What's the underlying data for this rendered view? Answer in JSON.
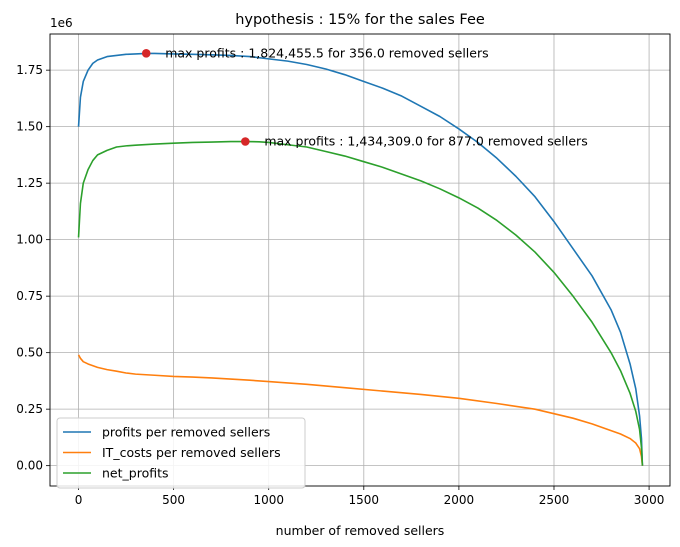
{
  "chart_data": {
    "type": "line",
    "title": "hypothesis : 15% for the sales Fee",
    "xlabel": "number of removed sellers",
    "ylabel": "",
    "y_offset_label": "1e6",
    "xlim": [
      -150,
      3110
    ],
    "ylim": [
      -0.09,
      1.91
    ],
    "xticks": [
      0,
      500,
      1000,
      1500,
      2000,
      2500,
      3000
    ],
    "xtick_labels": [
      "0",
      "500",
      "1000",
      "1500",
      "2000",
      "2500",
      "3000"
    ],
    "yticks": [
      0.0,
      0.25,
      0.5,
      0.75,
      1.0,
      1.25,
      1.5,
      1.75
    ],
    "ytick_labels": [
      "0.00",
      "0.25",
      "0.50",
      "0.75",
      "1.00",
      "1.25",
      "1.50",
      "1.75"
    ],
    "grid": true,
    "legend_position": "lower-left",
    "series": [
      {
        "name": "profits per removed sellers",
        "color": "#1f77b4",
        "x": [
          0,
          10,
          25,
          50,
          75,
          100,
          150,
          200,
          250,
          300,
          356,
          400,
          500,
          600,
          700,
          800,
          900,
          1000,
          1100,
          1200,
          1300,
          1400,
          1500,
          1600,
          1700,
          1800,
          1900,
          2000,
          2100,
          2200,
          2300,
          2400,
          2500,
          2600,
          2700,
          2800,
          2850,
          2900,
          2930,
          2950,
          2960,
          2965
        ],
        "values": [
          1.5,
          1.63,
          1.7,
          1.75,
          1.78,
          1.795,
          1.81,
          1.815,
          1.82,
          1.822,
          1.824,
          1.824,
          1.822,
          1.82,
          1.818,
          1.815,
          1.81,
          1.8,
          1.79,
          1.775,
          1.755,
          1.73,
          1.7,
          1.67,
          1.635,
          1.59,
          1.545,
          1.49,
          1.43,
          1.36,
          1.28,
          1.19,
          1.08,
          0.96,
          0.84,
          0.69,
          0.59,
          0.45,
          0.34,
          0.22,
          0.12,
          0.0
        ]
      },
      {
        "name": "IT_costs per removed sellers",
        "color": "#ff7f0e",
        "x": [
          0,
          10,
          25,
          50,
          100,
          150,
          200,
          250,
          300,
          400,
          500,
          600,
          700,
          800,
          900,
          1000,
          1200,
          1400,
          1600,
          1800,
          2000,
          2200,
          2400,
          2500,
          2600,
          2700,
          2800,
          2850,
          2900,
          2930,
          2950,
          2960,
          2965
        ],
        "values": [
          0.49,
          0.475,
          0.46,
          0.45,
          0.435,
          0.425,
          0.418,
          0.41,
          0.405,
          0.4,
          0.395,
          0.392,
          0.388,
          0.383,
          0.378,
          0.372,
          0.36,
          0.345,
          0.33,
          0.315,
          0.298,
          0.275,
          0.25,
          0.23,
          0.21,
          0.185,
          0.155,
          0.14,
          0.12,
          0.1,
          0.075,
          0.04,
          0.0
        ]
      },
      {
        "name": "net_profits",
        "color": "#2ca02c",
        "x": [
          0,
          10,
          25,
          50,
          75,
          100,
          150,
          200,
          250,
          300,
          400,
          500,
          600,
          700,
          800,
          877,
          950,
          1000,
          1100,
          1200,
          1300,
          1400,
          1500,
          1600,
          1700,
          1800,
          1900,
          2000,
          2100,
          2200,
          2300,
          2400,
          2500,
          2600,
          2700,
          2800,
          2850,
          2900,
          2930,
          2950,
          2960,
          2965
        ],
        "values": [
          1.01,
          1.16,
          1.25,
          1.31,
          1.35,
          1.375,
          1.395,
          1.41,
          1.415,
          1.418,
          1.423,
          1.427,
          1.43,
          1.432,
          1.434,
          1.434,
          1.433,
          1.43,
          1.42,
          1.41,
          1.39,
          1.37,
          1.345,
          1.32,
          1.29,
          1.26,
          1.225,
          1.185,
          1.14,
          1.085,
          1.02,
          0.945,
          0.855,
          0.75,
          0.635,
          0.5,
          0.42,
          0.32,
          0.24,
          0.16,
          0.08,
          0.0
        ]
      }
    ],
    "markers": [
      {
        "x": 356.0,
        "y": 1.8244555,
        "color": "#d62728"
      },
      {
        "x": 877.0,
        "y": 1.434309,
        "color": "#d62728"
      }
    ],
    "annotations": [
      {
        "text": "max profits : 1,824,455.5 for 356.0 removed sellers",
        "x": 356.0,
        "y": 1.8244555
      },
      {
        "text": "max profits : 1,434,309.0 for 877.0 removed sellers",
        "x": 877.0,
        "y": 1.434309
      }
    ]
  }
}
